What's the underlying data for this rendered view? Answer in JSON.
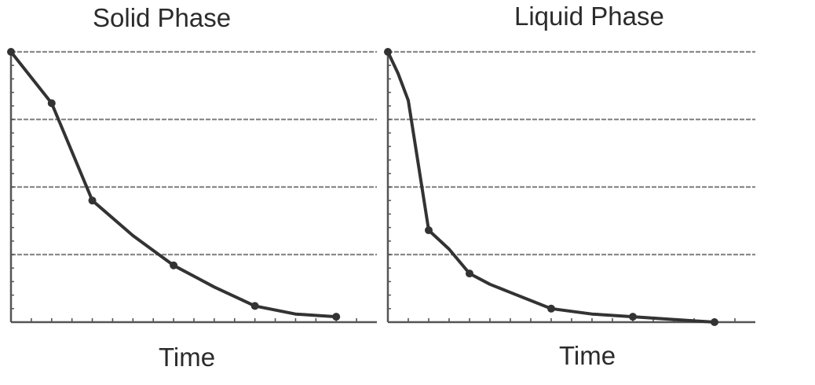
{
  "chart_data": [
    {
      "type": "line",
      "title": "Solid Phase",
      "xlabel": "Time",
      "ylabel": "",
      "x": [
        0,
        1,
        2,
        3,
        4,
        5,
        6,
        7,
        8
      ],
      "series": [
        {
          "values": [
            1.0,
            0.81,
            0.45,
            0.32,
            0.21,
            0.13,
            0.06,
            0.03,
            0.02
          ]
        }
      ],
      "markers_at": [
        0,
        1,
        2,
        4,
        6,
        8
      ],
      "xlim": [
        0,
        9
      ],
      "ylim": [
        0,
        1
      ],
      "y_gridlines": [
        0.25,
        0.5,
        0.75,
        1.0
      ],
      "grid": true,
      "legend": "none"
    },
    {
      "type": "line",
      "title": "Liquid Phase",
      "xlabel": "Time",
      "ylabel": "",
      "x": [
        0,
        0.25,
        0.5,
        1,
        1.5,
        2,
        2.5,
        3,
        4,
        5,
        6,
        7,
        8
      ],
      "series": [
        {
          "values": [
            1.0,
            0.92,
            0.82,
            0.34,
            0.27,
            0.18,
            0.14,
            0.11,
            0.05,
            0.03,
            0.02,
            0.01,
            0.0
          ]
        }
      ],
      "markers_at": [
        0,
        1,
        2,
        4,
        6,
        8
      ],
      "xlim": [
        0,
        9
      ],
      "ylim": [
        0,
        1
      ],
      "y_gridlines": [
        0.25,
        0.5,
        0.75,
        1.0
      ],
      "grid": true,
      "legend": "none"
    }
  ],
  "colors": {
    "line": "#333333",
    "axis": "#555555",
    "grid": "#8a8a8a",
    "text": "#2b2b2b"
  }
}
